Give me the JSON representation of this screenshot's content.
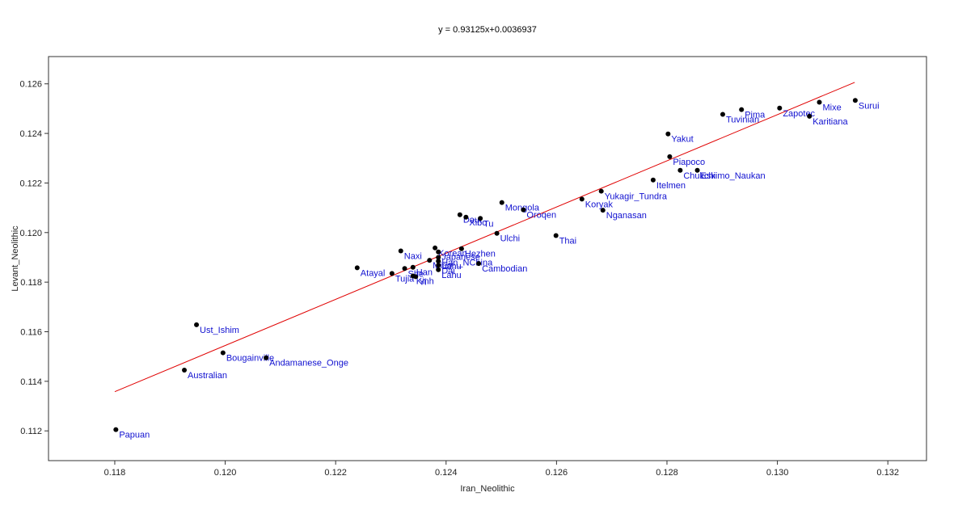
{
  "chart_data": {
    "type": "scatter",
    "title": "y = 0.93125x+0.0036937",
    "xlabel": "Iran_Neolithic",
    "ylabel": "Levant_Neolithic",
    "xlim": [
      0.1168,
      0.1327
    ],
    "ylim": [
      0.1108,
      0.1271
    ],
    "xticks": [
      "0.118",
      "0.120",
      "0.122",
      "0.124",
      "0.126",
      "0.128",
      "0.130",
      "0.132"
    ],
    "yticks": [
      "0.112",
      "0.114",
      "0.116",
      "0.118",
      "0.120",
      "0.122",
      "0.124",
      "0.126"
    ],
    "grid": false,
    "fit_line": {
      "slope": 0.93125,
      "intercept": 0.0036937,
      "x_range": [
        0.118,
        0.1314
      ],
      "color": "#e00000"
    },
    "point_color": "#000000",
    "label_color": "#1010d0",
    "points": [
      {
        "label": "Papuan",
        "x": 0.11802,
        "y": 0.11205
      },
      {
        "label": "Ust_Ishim",
        "x": 0.11948,
        "y": 0.11628
      },
      {
        "label": "Bougainville",
        "x": 0.11996,
        "y": 0.11515
      },
      {
        "label": "Andamanese_Onge",
        "x": 0.12074,
        "y": 0.11495
      },
      {
        "label": "Australian",
        "x": 0.11926,
        "y": 0.11445
      },
      {
        "label": "Atayal",
        "x": 0.12239,
        "y": 0.11858
      },
      {
        "label": "Tujia",
        "x": 0.12302,
        "y": 0.11835
      },
      {
        "label": "She",
        "x": 0.12325,
        "y": 0.11855
      },
      {
        "label": "Kinh",
        "x": 0.1234,
        "y": 0.11825
      },
      {
        "label": "Yi",
        "x": 0.12345,
        "y": 0.11822
      },
      {
        "label": "Han",
        "x": 0.1234,
        "y": 0.1186
      },
      {
        "label": "Miao",
        "x": 0.1237,
        "y": 0.11888
      },
      {
        "label": "Naxi",
        "x": 0.12318,
        "y": 0.11926
      },
      {
        "label": "Korean",
        "x": 0.1238,
        "y": 0.11938
      },
      {
        "label": "Hezhen",
        "x": 0.12428,
        "y": 0.11935
      },
      {
        "label": "Japanese",
        "x": 0.12386,
        "y": 0.11922
      },
      {
        "label": "Han_NChina",
        "x": 0.12386,
        "y": 0.119
      },
      {
        "label": "Lahu",
        "x": 0.12386,
        "y": 0.11885
      },
      {
        "label": "Dai",
        "x": 0.12386,
        "y": 0.11868
      },
      {
        "label": "Lahu",
        "x": 0.12386,
        "y": 0.1185
      },
      {
        "label": "Cambodian",
        "x": 0.12459,
        "y": 0.11875
      },
      {
        "label": "Daur",
        "x": 0.12425,
        "y": 0.12072
      },
      {
        "label": "Xibo",
        "x": 0.12436,
        "y": 0.12062
      },
      {
        "label": "Tu",
        "x": 0.12462,
        "y": 0.12057
      },
      {
        "label": "Mongola",
        "x": 0.12501,
        "y": 0.12121
      },
      {
        "label": "Oroqen",
        "x": 0.1254,
        "y": 0.12092
      },
      {
        "label": "Ulchi",
        "x": 0.12492,
        "y": 0.11997
      },
      {
        "label": "Thai",
        "x": 0.12599,
        "y": 0.11988
      },
      {
        "label": "Koryak",
        "x": 0.12646,
        "y": 0.12135
      },
      {
        "label": "Yukagir_Tundra",
        "x": 0.12681,
        "y": 0.12167
      },
      {
        "label": "Nganasan",
        "x": 0.12684,
        "y": 0.1209
      },
      {
        "label": "Chukchi",
        "x": 0.12824,
        "y": 0.12251
      },
      {
        "label": "Itelmen",
        "x": 0.12775,
        "y": 0.12212
      },
      {
        "label": "Eskimo_Naukan",
        "x": 0.12855,
        "y": 0.12251
      },
      {
        "label": "Piapoco",
        "x": 0.12805,
        "y": 0.12306
      },
      {
        "label": "Yakut",
        "x": 0.12802,
        "y": 0.12398
      },
      {
        "label": "Tuvinian",
        "x": 0.12901,
        "y": 0.12477
      },
      {
        "label": "Pima",
        "x": 0.12935,
        "y": 0.12496
      },
      {
        "label": "Zapotec",
        "x": 0.13004,
        "y": 0.12502
      },
      {
        "label": "Mixe",
        "x": 0.13076,
        "y": 0.12526
      },
      {
        "label": "Karitiana",
        "x": 0.13058,
        "y": 0.12469
      },
      {
        "label": "Surui",
        "x": 0.13141,
        "y": 0.12533
      }
    ]
  }
}
